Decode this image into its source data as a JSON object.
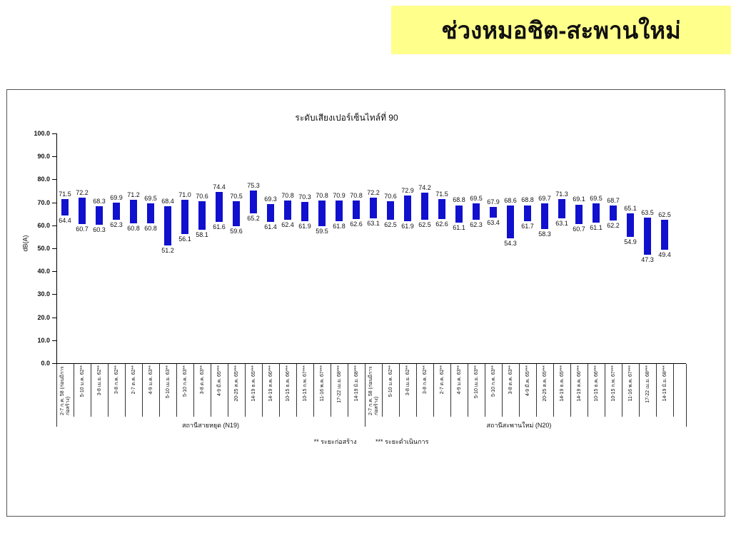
{
  "banner": {
    "title": "ช่วงหมอชิต-สะพานใหม่",
    "bg_color": "#FFFF8C"
  },
  "chart_data": {
    "type": "bar",
    "subtype": "floating-range-bar",
    "title": "ระดับเสียงเปอร์เซ็นไทล์ที่ 90",
    "ylabel": "dB(A)",
    "ylim": [
      0,
      100
    ],
    "ytick_step": 10,
    "grid": false,
    "legend": "none",
    "bar_color": "#1010CE",
    "footnote_construction": "** ระยะก่อสร้าง",
    "footnote_operation": "*** ระยะดำเนินการ",
    "groups": [
      {
        "name": "สถานีสายหยุด (N19)",
        "points": [
          {
            "label": "2-7 ก.ค. 58 (ก่อนมีการก่อสร้าง)",
            "min": 64.4,
            "max": 71.5,
            "wrap": true
          },
          {
            "label": "5-10 ม.ค. 62**",
            "min": 60.7,
            "max": 72.2
          },
          {
            "label": "3-8 เม.ย. 62**",
            "min": 60.3,
            "max": 68.3
          },
          {
            "label": "3-8 ก.ค. 62**",
            "min": 62.3,
            "max": 69.9
          },
          {
            "label": "2-7 ต.ค. 62**",
            "min": 60.8,
            "max": 71.2
          },
          {
            "label": "4-9 ม.ค. 63**",
            "min": 60.8,
            "max": 69.5
          },
          {
            "label": "5-10 เม.ย. 63**",
            "min": 51.2,
            "max": 68.4
          },
          {
            "label": "5-10 ก.ค. 63**",
            "min": 56.1,
            "max": 71.0
          },
          {
            "label": "3-8 ต.ค. 63**",
            "min": 58.1,
            "max": 70.6
          },
          {
            "label": "4-9 มี.ค. 65***",
            "min": 61.6,
            "max": 74.4
          },
          {
            "label": "20-25 ส.ค. 65***",
            "min": 59.6,
            "max": 70.5
          },
          {
            "label": "14-19 ธ.ค. 65***",
            "min": 65.2,
            "max": 75.3
          },
          {
            "label": "14-19 ส.ค. 66***",
            "min": 61.4,
            "max": 69.3
          },
          {
            "label": "10-15 ธ.ค. 66***",
            "min": 62.4,
            "max": 70.8
          },
          {
            "label": "10-15 ก.พ. 67***",
            "min": 61.9,
            "max": 70.3
          },
          {
            "label": "11-16 พ.ค. 67***",
            "min": 59.5,
            "max": 70.8
          },
          {
            "label": "17-22 เม.ย. 68***",
            "min": 61.8,
            "max": 70.9
          },
          {
            "label": "14-19 มิ.ย. 68***",
            "min": 62.6,
            "max": 70.8
          }
        ]
      },
      {
        "name": "สถานีสะพานใหม่  (N20)",
        "points": [
          {
            "label": "2-7 ก.ค. 58 (ก่อนมีการก่อสร้าง)",
            "min": 63.1,
            "max": 72.2,
            "wrap": true
          },
          {
            "label": "5-10 ม.ค. 62**",
            "min": 62.5,
            "max": 70.6
          },
          {
            "label": "3-8 เม.ย. 62**",
            "min": 61.9,
            "max": 72.9
          },
          {
            "label": "3-8 ก.ค. 62**",
            "min": 62.5,
            "max": 74.2
          },
          {
            "label": "2-7 ต.ค. 62**",
            "min": 62.6,
            "max": 71.5
          },
          {
            "label": "4-9 ม.ค. 63**",
            "min": 61.1,
            "max": 68.8
          },
          {
            "label": "5-10 เม.ย. 63**",
            "min": 62.3,
            "max": 69.5
          },
          {
            "label": "5-10 ก.ค. 63**",
            "min": 63.4,
            "max": 67.9
          },
          {
            "label": "3-8 ต.ค. 63**",
            "min": 54.3,
            "max": 68.6
          },
          {
            "label": "4-9 มี.ค. 65***",
            "min": 61.7,
            "max": 68.8
          },
          {
            "label": "20-25 ส.ค. 65***",
            "min": 58.3,
            "max": 69.7
          },
          {
            "label": "14-19 ธ.ค. 65***",
            "min": 63.1,
            "max": 71.3
          },
          {
            "label": "14-19 ส.ค. 66***",
            "min": 60.7,
            "max": 69.1
          },
          {
            "label": "10-15 ธ.ค. 66***",
            "min": 61.1,
            "max": 69.5
          },
          {
            "label": "10-15 ก.พ. 67***",
            "min": 62.2,
            "max": 68.7
          },
          {
            "label": "11-16 พ.ค. 67***",
            "min": 54.9,
            "max": 65.1
          },
          {
            "label": "17-22 เม.ย. 68***",
            "min": 47.3,
            "max": 63.5
          },
          {
            "label": "14-19 มิ.ย. 68***",
            "min": 49.4,
            "max": 62.5
          }
        ]
      }
    ]
  }
}
